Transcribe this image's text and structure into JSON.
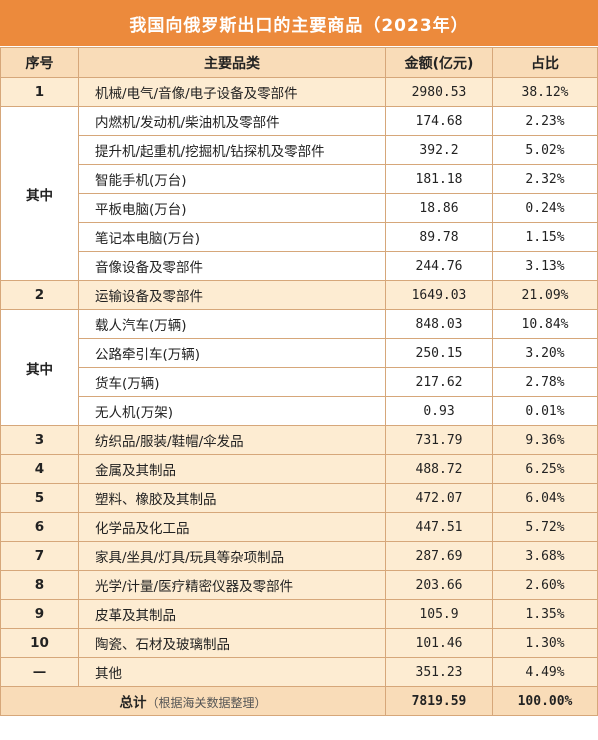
{
  "title": "我国向俄罗斯出口的主要商品（2023年）",
  "headers": {
    "no": "序号",
    "category": "主要品类",
    "amount": "金额(亿元)",
    "share": "占比"
  },
  "groups": [
    {
      "no": "1",
      "name": "机械/电气/音像/电子设备及零部件",
      "amount": "2980.53",
      "share": "38.12%",
      "sub_label": "其中",
      "subs": [
        {
          "name": "内燃机/发动机/柴油机及零部件",
          "amount": "174.68",
          "share": "2.23%"
        },
        {
          "name": "提升机/起重机/挖掘机/钻探机及零部件",
          "amount": "392.2",
          "share": "5.02%"
        },
        {
          "name": "智能手机(万台)",
          "amount": "181.18",
          "share": "2.32%"
        },
        {
          "name": "平板电脑(万台)",
          "amount": "18.86",
          "share": "0.24%"
        },
        {
          "name": "笔记本电脑(万台)",
          "amount": "89.78",
          "share": "1.15%"
        },
        {
          "name": "音像设备及零部件",
          "amount": "244.76",
          "share": "3.13%"
        }
      ]
    },
    {
      "no": "2",
      "name": "运输设备及零部件",
      "amount": "1649.03",
      "share": "21.09%",
      "sub_label": "其中",
      "subs": [
        {
          "name": "载人汽车(万辆)",
          "amount": "848.03",
          "share": "10.84%"
        },
        {
          "name": "公路牵引车(万辆)",
          "amount": "250.15",
          "share": "3.20%"
        },
        {
          "name": "货车(万辆)",
          "amount": "217.62",
          "share": "2.78%"
        },
        {
          "name": "无人机(万架)",
          "amount": "0.93",
          "share": "0.01%"
        }
      ]
    }
  ],
  "rows": [
    {
      "no": "3",
      "name": "纺织品/服装/鞋帽/伞发品",
      "amount": "731.79",
      "share": "9.36%"
    },
    {
      "no": "4",
      "name": "金属及其制品",
      "amount": "488.72",
      "share": "6.25%"
    },
    {
      "no": "5",
      "name": "塑料、橡胶及其制品",
      "amount": "472.07",
      "share": "6.04%"
    },
    {
      "no": "6",
      "name": "化学品及化工品",
      "amount": "447.51",
      "share": "5.72%"
    },
    {
      "no": "7",
      "name": "家具/坐具/灯具/玩具等杂项制品",
      "amount": "287.69",
      "share": "3.68%"
    },
    {
      "no": "8",
      "name": "光学/计量/医疗精密仪器及零部件",
      "amount": "203.66",
      "share": "2.60%"
    },
    {
      "no": "9",
      "name": "皮革及其制品",
      "amount": "105.9",
      "share": "1.35%"
    },
    {
      "no": "10",
      "name": "陶瓷、石材及玻璃制品",
      "amount": "101.46",
      "share": "1.30%"
    },
    {
      "no": "—",
      "name": "其他",
      "amount": "351.23",
      "share": "4.49%"
    }
  ],
  "total": {
    "label": "总计",
    "note": "（根据海关数据整理）",
    "amount": "7819.59",
    "share": "100.00%"
  }
}
